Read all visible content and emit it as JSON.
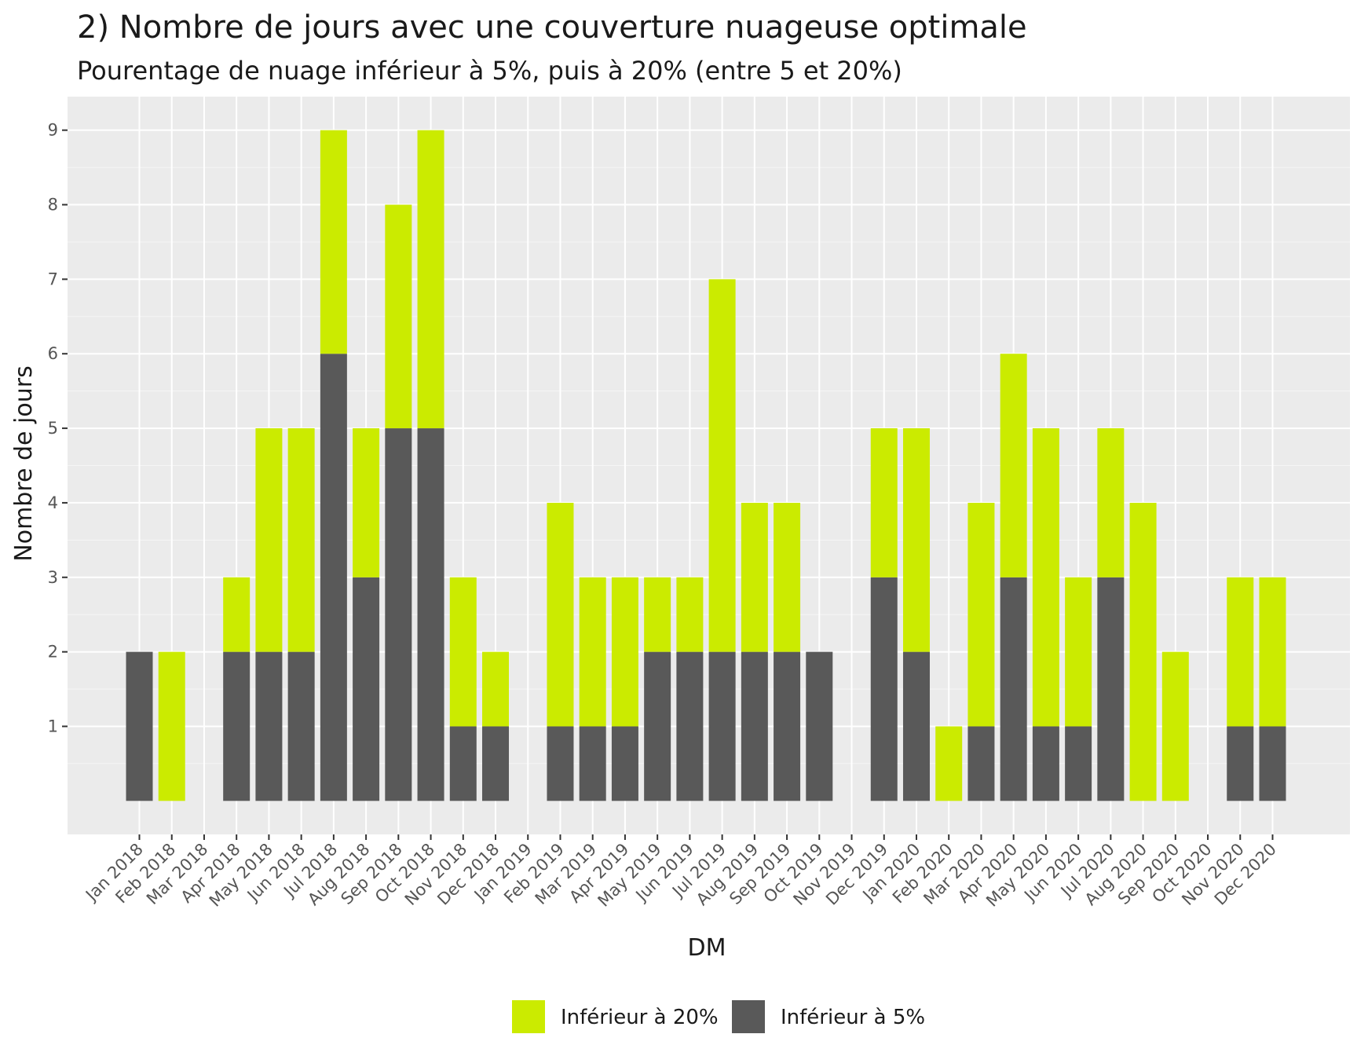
{
  "chart_data": {
    "type": "bar",
    "stacked": true,
    "title": "2) Nombre de jours avec une couverture nuageuse optimale",
    "subtitle": "Pourentage de nuage inférieur à 5%, puis à 20% (entre 5 et 20%)",
    "xlabel": "DM",
    "ylabel": "Nombre de jours",
    "ylim": [
      -0.45,
      9.45
    ],
    "yticks": [
      1,
      2,
      3,
      4,
      5,
      6,
      7,
      8,
      9
    ],
    "categories": [
      "Jan 2018",
      "Feb 2018",
      "Mar 2018",
      "Apr 2018",
      "May 2018",
      "Jun 2018",
      "Jul 2018",
      "Aug 2018",
      "Sep 2018",
      "Oct 2018",
      "Nov 2018",
      "Dec 2018",
      "Jan 2019",
      "Feb 2019",
      "Mar 2019",
      "Apr 2019",
      "May 2019",
      "Jun 2019",
      "Jul 2019",
      "Aug 2019",
      "Sep 2019",
      "Oct 2019",
      "Nov 2019",
      "Dec 2019",
      "Jan 2020",
      "Feb 2020",
      "Mar 2020",
      "Apr 2020",
      "May 2020",
      "Jun 2020",
      "Jul 2020",
      "Aug 2020",
      "Sep 2020",
      "Oct 2020",
      "Nov 2020",
      "Dec 2020"
    ],
    "series": [
      {
        "name": "Inférieur à 5%",
        "color": "#595959",
        "values": [
          2,
          0,
          0,
          2,
          2,
          2,
          6,
          3,
          5,
          5,
          1,
          1,
          0,
          1,
          1,
          1,
          2,
          2,
          2,
          2,
          2,
          2,
          0,
          3,
          2,
          0,
          1,
          3,
          1,
          1,
          3,
          0,
          0,
          0,
          1,
          1
        ]
      },
      {
        "name": "Inférieur à 20%",
        "color": "#cbeb00",
        "values": [
          0,
          2,
          0,
          1,
          3,
          3,
          3,
          2,
          3,
          4,
          2,
          1,
          0,
          3,
          2,
          2,
          1,
          1,
          5,
          2,
          2,
          0,
          0,
          2,
          3,
          1,
          3,
          3,
          4,
          2,
          2,
          4,
          2,
          0,
          2,
          2
        ]
      }
    ],
    "legend_order": [
      "Inférieur à 20%",
      "Inférieur à 5%"
    ],
    "legend_position": "bottom",
    "grid": true
  }
}
